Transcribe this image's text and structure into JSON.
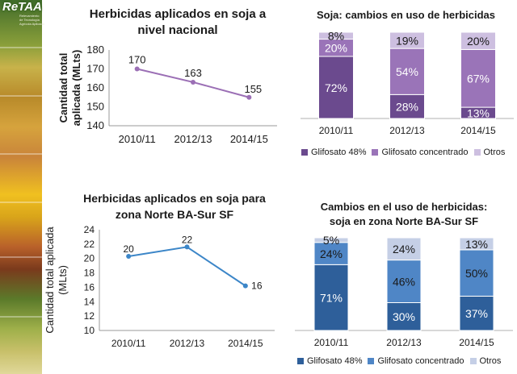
{
  "brand": {
    "name": "ReTAA",
    "sub_lines": [
      "Relevamiento",
      "de Tecnología",
      "Agrícola Aplicada"
    ]
  },
  "charts": {
    "c1": {
      "title_lines": [
        "Herbicidas aplicados en soja a",
        "nivel nacional"
      ],
      "ylabel_lines": [
        "Cantidad total",
        "aplicada (MLts)"
      ]
    },
    "c2": {
      "title_lines": [
        "Soja: cambios en uso de herbicidas"
      ]
    },
    "c3": {
      "title_lines": [
        "Herbicidas aplicados en soja para",
        "zona Norte BA-Sur SF"
      ],
      "ylabel_lines": [
        "Cantidad total aplicada",
        "(MLts)"
      ]
    },
    "c4": {
      "title_lines": [
        "Cambios en el uso de herbicidas:",
        "soja en zona Norte BA-Sur SF"
      ]
    }
  },
  "chart_data": [
    {
      "type": "line",
      "title": "Herbicidas aplicados en soja a nivel nacional",
      "ylabel": "Cantidad total aplicada (MLts)",
      "x": [
        "2010/11",
        "2012/13",
        "2014/15"
      ],
      "y": [
        170,
        163,
        155
      ],
      "data_labels": [
        "170",
        "163",
        "155"
      ],
      "ylim": [
        140,
        180
      ],
      "yticks": [
        "140",
        "150",
        "160",
        "170",
        "180"
      ],
      "color": "#9b6fb5"
    },
    {
      "type": "bar",
      "stacked": true,
      "title": "Soja: cambios en uso de herbicidas",
      "categories": [
        "2010/11",
        "2012/13",
        "2014/15"
      ],
      "series": [
        {
          "name": "Glifosato 48%",
          "color": "#6b4a8e",
          "values": [
            72,
            28,
            13
          ],
          "labels": [
            "72%",
            "28%",
            "13%"
          ]
        },
        {
          "name": "Glifosato concentrado",
          "color": "#9a74b8",
          "values": [
            20,
            54,
            67
          ],
          "labels": [
            "20%",
            "54%",
            "67%"
          ]
        },
        {
          "name": "Otros",
          "color": "#cdbfe0",
          "values": [
            8,
            19,
            20
          ],
          "labels": [
            "8%",
            "19%",
            "20%"
          ]
        }
      ],
      "legend": "bottom"
    },
    {
      "type": "line",
      "title": "Herbicidas aplicados en soja para zona Norte BA-Sur SF",
      "ylabel": "Cantidad total aplicada (MLts)",
      "x": [
        "2010/11",
        "2012/13",
        "2014/15"
      ],
      "y": [
        20.3,
        21.6,
        16.2
      ],
      "data_labels": [
        "20",
        "22",
        "16"
      ],
      "ylim": [
        10,
        24
      ],
      "yticks": [
        "10",
        "12",
        "14",
        "16",
        "18",
        "20",
        "22",
        "24"
      ],
      "color": "#3c86c8"
    },
    {
      "type": "bar",
      "stacked": true,
      "title": "Cambios en el uso de herbicidas: soja en zona Norte BA-Sur SF",
      "categories": [
        "2010/11",
        "2012/13",
        "2014/15"
      ],
      "series": [
        {
          "name": "Glifosato 48%",
          "color": "#2e5f9a",
          "values": [
            71,
            30,
            37
          ],
          "labels": [
            "71%",
            "30%",
            "37%"
          ]
        },
        {
          "name": "Glifosato concentrado",
          "color": "#4f86c6",
          "values": [
            24,
            46,
            50
          ],
          "labels": [
            "24%",
            "46%",
            "50%"
          ]
        },
        {
          "name": "Otros",
          "color": "#c5cfe6",
          "values": [
            5,
            24,
            13
          ],
          "labels": [
            "5%",
            "24%",
            "13%"
          ]
        }
      ],
      "legend": "bottom"
    }
  ]
}
